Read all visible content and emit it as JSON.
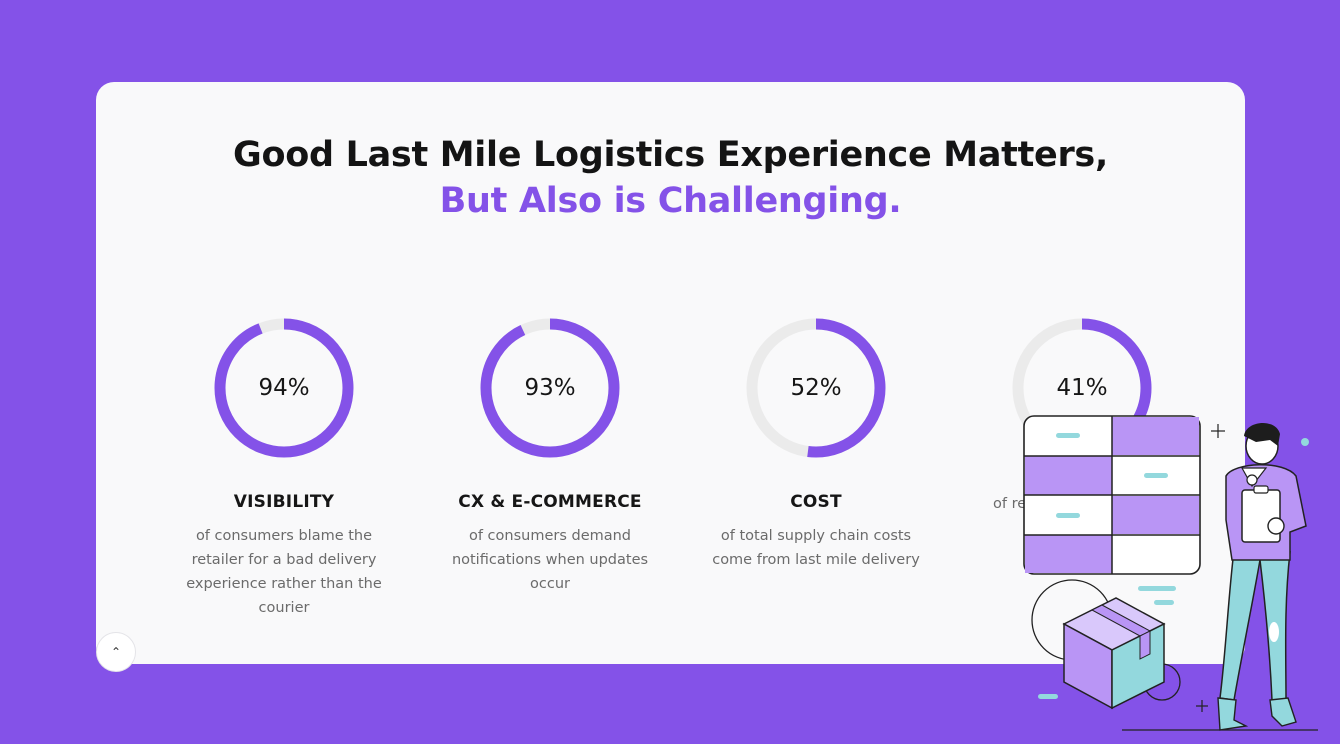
{
  "heading": {
    "line1": "Good Last Mile Logistics Experience Matters,",
    "line2": "But Also is Challenging."
  },
  "colors": {
    "background": "#8452e8",
    "accent": "#8452e8",
    "ring_track": "#ebebeb",
    "card": "#f9f9fa"
  },
  "stats": [
    {
      "percent_label": "94%",
      "fraction": 0.94,
      "title": "VISIBILITY",
      "description_lines": [
        "of consumers blame the",
        "retailer for a bad delivery",
        "experience rather than the",
        "courier"
      ]
    },
    {
      "percent_label": "93%",
      "fraction": 0.93,
      "title": "CX & E-COMMERCE",
      "description_lines": [
        "of consumers demand",
        "notifications when updates",
        "occur"
      ]
    },
    {
      "percent_label": "52%",
      "fraction": 0.52,
      "title": "COST",
      "description_lines": [
        "of total supply chain costs",
        "come from last mile delivery"
      ]
    },
    {
      "percent_label": "41%",
      "fraction": 0.41,
      "title": "",
      "description_lines": [
        "of retai"
      ]
    }
  ],
  "scroll_button": {
    "icon": "chevron-up-icon",
    "glyph": "⌃"
  },
  "illustration": {
    "icon": "delivery-worker-illustration"
  }
}
